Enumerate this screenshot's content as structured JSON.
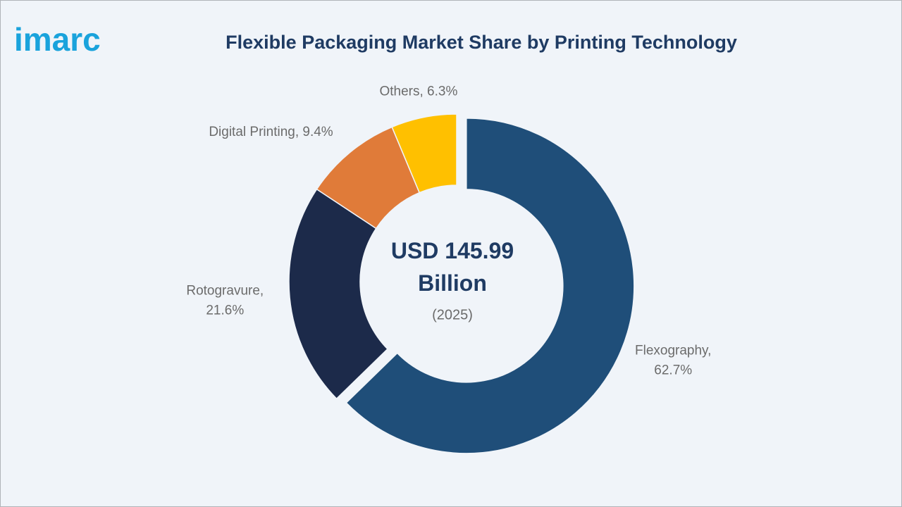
{
  "logo": "imarc",
  "chart_data": {
    "type": "donut",
    "title": "Flexible Packaging Market Share by Printing Technology",
    "center_label": "USD 145.99 Billion",
    "center_sublabel": "(2025)",
    "values": [
      62.7,
      21.6,
      9.4,
      6.3
    ],
    "value_labels": [
      "Flexography, 62.7%",
      "Rotogravure, 21.6%",
      "Digital Printing, 9.4%",
      "Others, 6.3%"
    ],
    "colors": [
      "#1f4e79",
      "#1c2a4a",
      "#e07b39",
      "#ffc000"
    ]
  }
}
